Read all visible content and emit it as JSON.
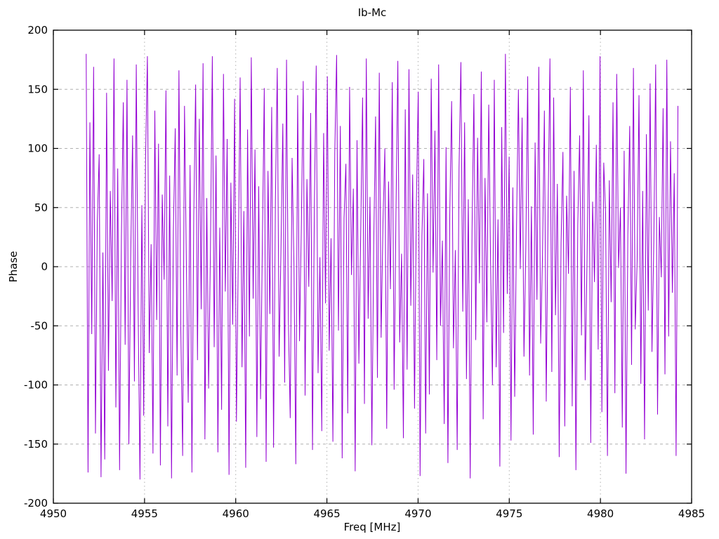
{
  "chart_data": {
    "type": "line",
    "title": "Ib-Mc",
    "xlabel": "Freq [MHz]",
    "ylabel": "Phase",
    "xlim": [
      4950,
      4985
    ],
    "ylim": [
      -200,
      200
    ],
    "x_ticks": [
      4950,
      4955,
      4960,
      4965,
      4970,
      4975,
      4980,
      4985
    ],
    "y_ticks": [
      -200,
      -150,
      -100,
      -50,
      0,
      50,
      100,
      150,
      200
    ],
    "grid": true,
    "legend_position": "none",
    "line_color": "#9400d3",
    "border_color": "#000000",
    "grid_color": "#b0b0b0",
    "series": [
      {
        "name": "Phase",
        "x_start": 4951.8,
        "x_end": 4984.25,
        "y": [
          180,
          -174,
          122,
          -57,
          169,
          -141,
          38,
          95,
          -178,
          12,
          -163,
          147,
          -88,
          64,
          -29,
          176,
          -119,
          83,
          -172,
          25,
          139,
          -66,
          158,
          -150,
          7,
          111,
          -97,
          171,
          -34,
          -180,
          52,
          -126,
          90,
          178,
          -73,
          19,
          -158,
          132,
          -45,
          104,
          -168,
          61,
          -11,
          149,
          -135,
          77,
          -179,
          29,
          117,
          -92,
          166,
          -52,
          -160,
          136,
          4,
          -115,
          86,
          -174,
          43,
          154,
          -79,
          125,
          -36,
          172,
          -146,
          58,
          -103,
          15,
          178,
          -68,
          94,
          -157,
          33,
          -121,
          163,
          -21,
          108,
          -176,
          71,
          -49,
          142,
          -131,
          9,
          160,
          -85,
          47,
          -170,
          116,
          -59,
          177,
          -27,
          99,
          -144,
          68,
          -112,
          23,
          151,
          -165,
          81,
          -40,
          135,
          -153,
          55,
          168,
          -76,
          13,
          121,
          -98,
          175,
          -46,
          -128,
          92,
          2,
          -167,
          145,
          -63,
          36,
          157,
          -109,
          74,
          -17,
          130,
          -155,
          49,
          170,
          -90,
          8,
          -139,
          113,
          -31,
          161,
          -71,
          24,
          -148,
          96,
          179,
          -54,
          119,
          -162,
          41,
          87,
          -124,
          152,
          -7,
          66,
          -173,
          107,
          -82,
          29,
          143,
          -116,
          176,
          -44,
          59,
          -151,
          18,
          127,
          -94,
          164,
          -60,
          37,
          100,
          -137,
          72,
          -19,
          156,
          -104,
          46,
          174,
          -64,
          11,
          -145,
          133,
          -87,
          167,
          -33,
          78,
          -120,
          53,
          148,
          -177,
          26,
          91,
          -141,
          62,
          -108,
          159,
          -5,
          115,
          -79,
          171,
          -50,
          22,
          -133,
          101,
          -166,
          44,
          140,
          -69,
          14,
          -155,
          84,
          173,
          -38,
          122,
          -95,
          57,
          -179,
          31,
          146,
          -62,
          109,
          -14,
          165,
          -129,
          75,
          -47,
          137,
          3,
          -100,
          158,
          -85,
          40,
          -169,
          118,
          -56,
          180,
          -23,
          93,
          -147,
          67,
          -110,
          34,
          150,
          -2,
          126,
          -76,
          16,
          161,
          -92,
          51,
          -142,
          105,
          -28,
          169,
          -65,
          10,
          132,
          -114,
          48,
          176,
          -89,
          143,
          -41,
          70,
          -161,
          20,
          97,
          -135,
          60,
          -6,
          152,
          -118,
          81,
          -172,
          35,
          111,
          -58,
          166,
          -96,
          6,
          128,
          -149,
          55,
          -13,
          103,
          -70,
          178,
          -123,
          88,
          45,
          -160,
          73,
          -30,
          139,
          -107,
          163,
          -1,
          50,
          -136,
          98,
          -175,
          27,
          119,
          -83,
          168,
          -53,
          5,
          145,
          -99,
          64,
          -146,
          112,
          -37,
          155,
          -72,
          21,
          171,
          -125,
          42,
          -9,
          134,
          -91,
          175,
          -59,
          106,
          -22,
          79,
          -160,
          136
        ]
      }
    ]
  }
}
